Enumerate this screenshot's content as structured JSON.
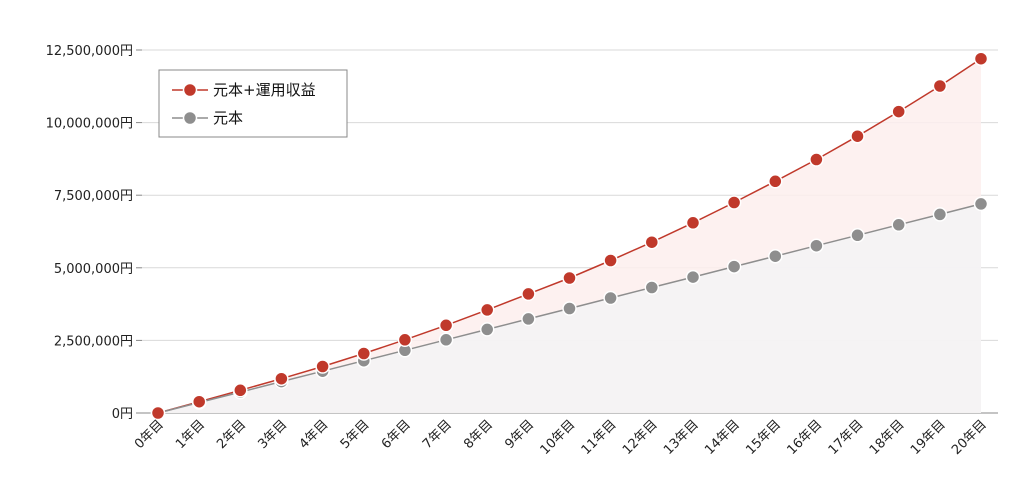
{
  "chart_data": {
    "type": "line",
    "title": "",
    "xlabel": "",
    "ylabel": "",
    "categories": [
      "0年目",
      "1年目",
      "2年目",
      "3年目",
      "4年目",
      "5年目",
      "6年目",
      "7年目",
      "8年目",
      "9年目",
      "10年目",
      "11年目",
      "12年目",
      "13年目",
      "14年目",
      "15年目",
      "16年目",
      "17年目",
      "18年目",
      "19年目",
      "20年目"
    ],
    "ylim": [
      0,
      12500000
    ],
    "yticks": [
      0,
      2500000,
      5000000,
      7500000,
      10000000,
      12500000
    ],
    "ytick_labels": [
      "0円",
      "2,500,000円",
      "5,000,000円",
      "7,500,000円",
      "10,000,000円",
      "12,500,000円"
    ],
    "grid": true,
    "legend_position": "top-left",
    "series": [
      {
        "name": "元本+運用収益",
        "color": "#c0392b",
        "fill": "#fdeeed",
        "values": [
          0,
          390000,
          780000,
          1180000,
          1600000,
          2050000,
          2520000,
          3020000,
          3550000,
          4100000,
          4650000,
          5250000,
          5880000,
          6550000,
          7250000,
          7980000,
          8730000,
          9530000,
          10380000,
          11260000,
          12200000
        ]
      },
      {
        "name": "元本",
        "color": "#8e8e8e",
        "fill": "#f3f3f5",
        "values": [
          0,
          360000,
          720000,
          1080000,
          1440000,
          1800000,
          2160000,
          2520000,
          2880000,
          3240000,
          3600000,
          3960000,
          4320000,
          4680000,
          5040000,
          5400000,
          5760000,
          6120000,
          6480000,
          6840000,
          7200000
        ]
      }
    ]
  }
}
